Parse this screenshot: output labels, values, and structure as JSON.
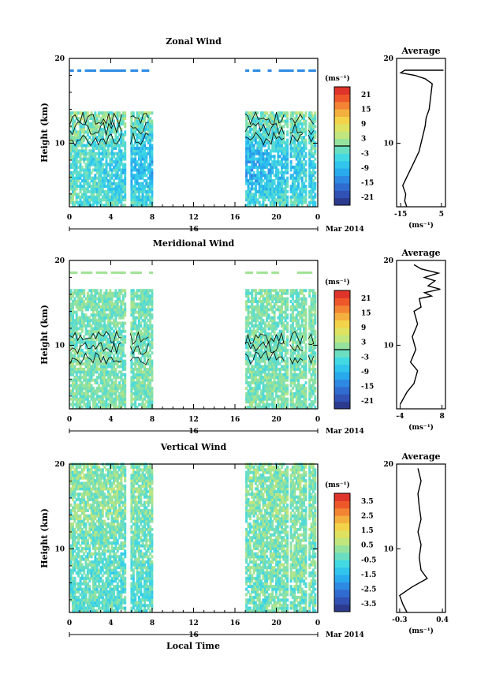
{
  "figure": {
    "x_tick_labels": [
      "0",
      "4",
      "8",
      "12",
      "16",
      "20",
      "0"
    ],
    "day_label": "16",
    "date_suffix": "Mar 2014",
    "xlabel": "Local Time",
    "unit_label": "(ms⁻¹)",
    "average_title": "Average"
  },
  "chart_data": [
    {
      "type": "heatmap",
      "title": "Zonal Wind",
      "ylabel": "Height (km)",
      "xlim": [
        0,
        24
      ],
      "ylim": [
        2.5,
        20
      ],
      "y_ticks": [
        10,
        20
      ],
      "x_ticks": [
        0,
        4,
        8,
        12,
        16,
        20,
        24
      ],
      "colorbar": {
        "label": "(ms⁻¹)",
        "ticks": [
          "21",
          "15",
          "9",
          "3",
          "-3",
          "-9",
          "-15",
          "-21"
        ],
        "range": [
          -24,
          24
        ],
        "zero_line": true
      },
      "base": -12,
      "noise": 5,
      "cx": 0.55,
      "cy": 0.72,
      "upper_base": 4,
      "top_y": 18.5,
      "contour_y": 11.5,
      "coverage_x": [
        [
          0.05,
          5.3
        ],
        [
          5.9,
          7.9
        ],
        [
          17.0,
          21.0
        ],
        [
          21.3,
          22.8
        ],
        [
          23.1,
          23.7
        ]
      ],
      "coverage_y": [
        2.5,
        13.6
      ],
      "average": {
        "title": "Average",
        "xlabel": "(ms⁻¹)",
        "xlim": [
          -17,
          7
        ],
        "xtick_labels": [
          "-15",
          "5"
        ],
        "x_ticks": [
          -15,
          5
        ],
        "profile": [
          [
            -12,
            2.5
          ],
          [
            -13,
            3.2
          ],
          [
            -12.5,
            4.0
          ],
          [
            -14,
            5.0
          ],
          [
            -12,
            6.0
          ],
          [
            -10,
            7.0
          ],
          [
            -8,
            8.0
          ],
          [
            -6,
            9.0
          ],
          [
            -5,
            10.0
          ],
          [
            -4,
            11.0
          ],
          [
            -3,
            12.0
          ],
          [
            -2.5,
            13.0
          ],
          [
            -1,
            14.0
          ],
          [
            -0.5,
            15.0
          ],
          [
            0,
            16.0
          ],
          [
            0.5,
            17.0
          ],
          [
            -3,
            17.6
          ],
          [
            -8,
            18.0
          ],
          [
            -15,
            18.3
          ],
          [
            -13,
            18.6
          ],
          [
            6,
            18.6
          ]
        ]
      }
    },
    {
      "type": "heatmap",
      "title": "Meridional Wind",
      "ylabel": "Height (km)",
      "xlim": [
        0,
        24
      ],
      "ylim": [
        2.5,
        20
      ],
      "y_ticks": [
        10,
        20
      ],
      "x_ticks": [
        0,
        4,
        8,
        12,
        16,
        20,
        24
      ],
      "colorbar": {
        "label": "(ms⁻¹)",
        "ticks": [
          "21",
          "15",
          "9",
          "3",
          "-3",
          "-9",
          "-15",
          "-21"
        ],
        "range": [
          -24,
          24
        ],
        "zero_line": true
      },
      "base": -1,
      "noise": 4,
      "cx": 0.5,
      "cy": 0.5,
      "upper_base": 0,
      "top_y": 18.5,
      "contour_y": 9.5,
      "coverage_x": [
        [
          0.05,
          5.3
        ],
        [
          5.9,
          7.9
        ],
        [
          17.0,
          21.0
        ],
        [
          21.3,
          22.8
        ],
        [
          23.1,
          23.7
        ]
      ],
      "coverage_y": [
        2.5,
        16.5
      ],
      "average": {
        "title": "Average",
        "xlabel": "(ms⁻¹)",
        "xlim": [
          -5,
          9
        ],
        "xtick_labels": [
          "-4",
          "8"
        ],
        "x_ticks": [
          -4,
          8
        ],
        "profile": [
          [
            -4,
            3.0
          ],
          [
            -2,
            4.5
          ],
          [
            0,
            5.5
          ],
          [
            1,
            7.0
          ],
          [
            -1,
            8.0
          ],
          [
            0.5,
            9.5
          ],
          [
            -0.5,
            11.0
          ],
          [
            1,
            12.5
          ],
          [
            0,
            14.0
          ],
          [
            2,
            14.5
          ],
          [
            1.5,
            15.5
          ],
          [
            5,
            15.8
          ],
          [
            3,
            16.2
          ],
          [
            7.5,
            16.6
          ],
          [
            4,
            17.0
          ],
          [
            6,
            17.6
          ],
          [
            3,
            18.0
          ],
          [
            7,
            18.5
          ],
          [
            2,
            19.0
          ],
          [
            0,
            19.5
          ]
        ]
      }
    },
    {
      "type": "heatmap",
      "title": "Vertical Wind",
      "ylabel": "Height (km)",
      "xlim": [
        0,
        24
      ],
      "ylim": [
        2.5,
        20
      ],
      "y_ticks": [
        10,
        20
      ],
      "x_ticks": [
        0,
        4,
        8,
        12,
        16,
        20,
        24
      ],
      "colorbar": {
        "label": "(ms⁻¹)",
        "ticks": [
          "3.5",
          "2.5",
          "1.5",
          "0.5",
          "-0.5",
          "-1.5",
          "-2.5",
          "-3.5"
        ],
        "range": [
          -4,
          4
        ],
        "zero_line": false
      },
      "base": -0.5,
      "noise": 0.8,
      "cx": 0.3,
      "cy": 0.85,
      "upper_base": 0.1,
      "top_y": 20,
      "contour_y": null,
      "coverage_x": [
        [
          0.05,
          5.3
        ],
        [
          5.9,
          7.9
        ],
        [
          17.0,
          21.0
        ],
        [
          21.3,
          22.8
        ],
        [
          23.1,
          23.7
        ]
      ],
      "coverage_y": [
        2.5,
        20
      ],
      "average": {
        "title": "Average",
        "xlabel": "(ms⁻¹)",
        "xlim": [
          -0.35,
          0.45
        ],
        "xtick_labels": [
          "-0.3",
          "0.4"
        ],
        "x_ticks": [
          -0.3,
          0.4
        ],
        "profile": [
          [
            -0.18,
            2.5
          ],
          [
            -0.25,
            3.5
          ],
          [
            -0.3,
            4.5
          ],
          [
            -0.1,
            5.5
          ],
          [
            0.15,
            6.5
          ],
          [
            0.05,
            7.5
          ],
          [
            0.02,
            9.0
          ],
          [
            0.05,
            10.5
          ],
          [
            0.0,
            12.0
          ],
          [
            0.05,
            13.5
          ],
          [
            0.02,
            15.0
          ],
          [
            0.0,
            16.5
          ],
          [
            0.05,
            18.0
          ],
          [
            0.0,
            19.5
          ]
        ]
      }
    }
  ]
}
